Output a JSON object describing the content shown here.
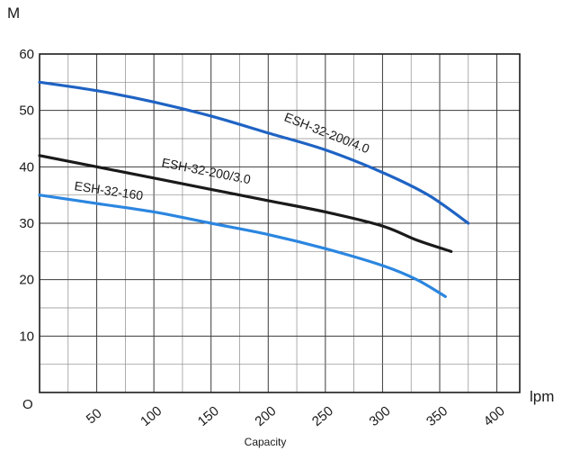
{
  "chart_data": {
    "type": "line",
    "y_unit": "M",
    "x_unit": "lpm",
    "xlabel": "Capacity",
    "ylabel": "",
    "xlim": [
      0,
      420
    ],
    "ylim": [
      0,
      60
    ],
    "x_ticks": [
      50,
      100,
      150,
      200,
      250,
      300,
      350,
      400
    ],
    "x_tick_labels": [
      "50",
      "100",
      "150",
      "200",
      "250",
      "300",
      "350",
      "400"
    ],
    "y_ticks": [
      10,
      20,
      30,
      40,
      50,
      60
    ],
    "y_tick_labels": [
      "10",
      "20",
      "30",
      "40",
      "50",
      "60"
    ],
    "origin_label": "O",
    "grid": true,
    "series": [
      {
        "name": "ESH-32-200/4.0",
        "color": "#1f63c4",
        "x": [
          0,
          50,
          100,
          150,
          200,
          250,
          300,
          340,
          375
        ],
        "y": [
          55,
          53.5,
          51.5,
          49,
          46,
          43,
          39,
          35,
          30
        ]
      },
      {
        "name": "ESH-32-200/3.0",
        "color": "#1a1a1a",
        "x": [
          0,
          50,
          100,
          150,
          200,
          250,
          300,
          330,
          360
        ],
        "y": [
          42,
          40,
          38,
          36,
          34,
          32,
          29.5,
          27,
          25
        ]
      },
      {
        "name": "ESH-32-160",
        "color": "#2b86e0",
        "x": [
          0,
          50,
          100,
          150,
          200,
          250,
          300,
          330,
          355
        ],
        "y": [
          35,
          33.5,
          32,
          30,
          28,
          25.5,
          22.5,
          20,
          17
        ]
      }
    ]
  }
}
